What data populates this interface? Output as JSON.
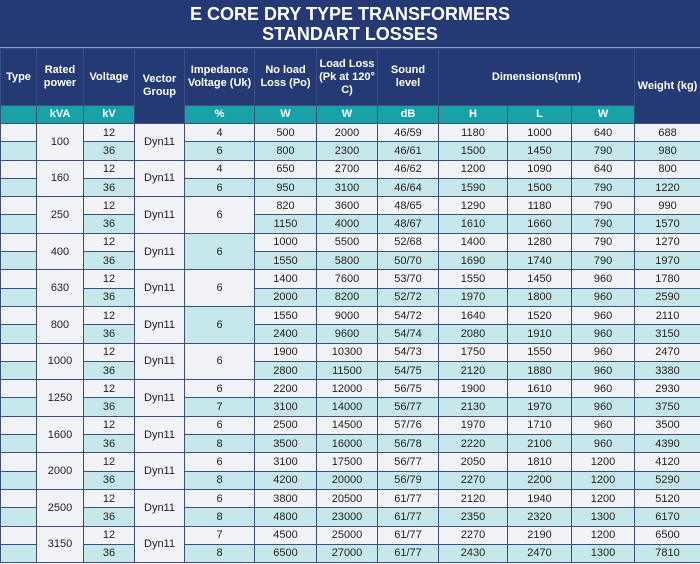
{
  "title": [
    "E CORE DRY TYPE TRANSFORMERS",
    "STANDART LOSSES"
  ],
  "headers": {
    "type": "Type",
    "rated": "Rated power",
    "voltage": "Voltage",
    "vector": "Vector Group",
    "impedance": "Impedance Voltage (Uk)",
    "noload": "No load Loss (Po)",
    "load": "Load Loss (Pk at 120° C)",
    "sound": "Sound level",
    "dimensions": "Dimensions(mm)",
    "weight": "Weight (kg)"
  },
  "units": {
    "rated": "kVA",
    "voltage": "kV",
    "impedance": "%",
    "noload": "W",
    "load": "W",
    "sound": "dB",
    "h": "H",
    "l": "L",
    "w": "W"
  },
  "groups": [
    {
      "kva": "100",
      "vg": "Dyn11",
      "imp": [
        "4",
        "6"
      ],
      "rows": [
        [
          "12",
          "500",
          "2000",
          "46/59",
          "1180",
          "1000",
          "640",
          "688"
        ],
        [
          "36",
          "800",
          "2300",
          "46/61",
          "1500",
          "1450",
          "790",
          "980"
        ]
      ]
    },
    {
      "kva": "160",
      "vg": "Dyn11",
      "imp": [
        "4",
        "6"
      ],
      "rows": [
        [
          "12",
          "650",
          "2700",
          "46/62",
          "1200",
          "1090",
          "640",
          "800"
        ],
        [
          "36",
          "950",
          "3100",
          "46/64",
          "1590",
          "1500",
          "790",
          "1220"
        ]
      ]
    },
    {
      "kva": "250",
      "vg": "Dyn11",
      "imp": [
        "6"
      ],
      "rows": [
        [
          "12",
          "820",
          "3600",
          "48/65",
          "1290",
          "1180",
          "790",
          "990"
        ],
        [
          "36",
          "1150",
          "4000",
          "48/67",
          "1610",
          "1660",
          "790",
          "1570"
        ]
      ]
    },
    {
      "kva": "400",
      "vg": "Dyn11",
      "imp": [
        "6"
      ],
      "rows": [
        [
          "12",
          "1000",
          "5500",
          "52/68",
          "1400",
          "1280",
          "790",
          "1270"
        ],
        [
          "36",
          "1550",
          "5800",
          "50/70",
          "1690",
          "1740",
          "790",
          "1970"
        ]
      ]
    },
    {
      "kva": "630",
      "vg": "Dyn11",
      "imp": [
        "6"
      ],
      "rows": [
        [
          "12",
          "1400",
          "7600",
          "53/70",
          "1550",
          "1450",
          "960",
          "1780"
        ],
        [
          "36",
          "2000",
          "8200",
          "52/72",
          "1970",
          "1800",
          "960",
          "2590"
        ]
      ]
    },
    {
      "kva": "800",
      "vg": "Dyn11",
      "imp": [
        "6"
      ],
      "rows": [
        [
          "12",
          "1550",
          "9000",
          "54/72",
          "1640",
          "1520",
          "960",
          "2110"
        ],
        [
          "36",
          "2400",
          "9600",
          "54/74",
          "2080",
          "1910",
          "960",
          "3150"
        ]
      ]
    },
    {
      "kva": "1000",
      "vg": "Dyn11",
      "imp": [
        "6"
      ],
      "rows": [
        [
          "12",
          "1900",
          "10300",
          "54/73",
          "1750",
          "1550",
          "960",
          "2470"
        ],
        [
          "36",
          "2800",
          "11500",
          "54/75",
          "2120",
          "1880",
          "960",
          "3380"
        ]
      ]
    },
    {
      "kva": "1250",
      "vg": "Dyn11",
      "imp": [
        "6",
        "7"
      ],
      "rows": [
        [
          "12",
          "2200",
          "12000",
          "56/75",
          "1900",
          "1610",
          "960",
          "2930"
        ],
        [
          "36",
          "3100",
          "14000",
          "56/77",
          "2130",
          "1970",
          "960",
          "3750"
        ]
      ]
    },
    {
      "kva": "1600",
      "vg": "Dyn11",
      "imp": [
        "6",
        "8"
      ],
      "rows": [
        [
          "12",
          "2500",
          "14500",
          "57/76",
          "1970",
          "1710",
          "960",
          "3500"
        ],
        [
          "36",
          "3500",
          "16000",
          "56/78",
          "2220",
          "2100",
          "960",
          "4390"
        ]
      ]
    },
    {
      "kva": "2000",
      "vg": "Dyn11",
      "imp": [
        "6",
        "8"
      ],
      "rows": [
        [
          "12",
          "3100",
          "17500",
          "56/77",
          "2050",
          "1810",
          "1200",
          "4120"
        ],
        [
          "36",
          "4200",
          "20000",
          "56/79",
          "2270",
          "2200",
          "1200",
          "5290"
        ]
      ]
    },
    {
      "kva": "2500",
      "vg": "Dyn11",
      "imp": [
        "6",
        "8"
      ],
      "rows": [
        [
          "12",
          "3800",
          "20500",
          "61/77",
          "2120",
          "1940",
          "1200",
          "5120"
        ],
        [
          "36",
          "4800",
          "23000",
          "61/77",
          "2350",
          "2320",
          "1300",
          "6170"
        ]
      ]
    },
    {
      "kva": "3150",
      "vg": "Dyn11",
      "imp": [
        "7",
        "8"
      ],
      "rows": [
        [
          "12",
          "4500",
          "25000",
          "61/77",
          "2270",
          "2190",
          "1200",
          "6500"
        ],
        [
          "36",
          "6500",
          "27000",
          "61/77",
          "2430",
          "2470",
          "1300",
          "7810"
        ]
      ]
    }
  ]
}
